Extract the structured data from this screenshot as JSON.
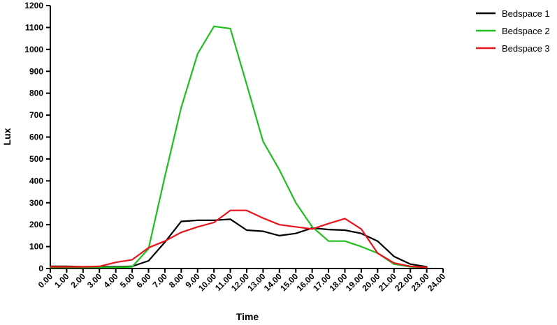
{
  "chart_data": {
    "type": "line",
    "xlabel": "Time",
    "ylabel": "Lux",
    "xlim": [
      0,
      24
    ],
    "ylim": [
      0,
      1200
    ],
    "x_ticks": [
      0,
      1,
      2,
      3,
      4,
      5,
      6,
      7,
      8,
      9,
      10,
      11,
      12,
      13,
      14,
      15,
      16,
      17,
      18,
      19,
      20,
      21,
      22,
      23,
      24
    ],
    "x_tick_labels": [
      "0.00",
      "1.00",
      "2.00",
      "3.00",
      "4.00",
      "5.00",
      "6.00",
      "7.00",
      "8.00",
      "9.00",
      "10.00",
      "11.00",
      "12.00",
      "13.00",
      "14.00",
      "15.00",
      "16.00",
      "17.00",
      "18.00",
      "19.00",
      "20.00",
      "21.00",
      "22.00",
      "23.00",
      "24.00"
    ],
    "y_ticks": [
      0,
      100,
      200,
      300,
      400,
      500,
      600,
      700,
      800,
      900,
      1000,
      1100,
      1200
    ],
    "y_tick_labels": [
      "0",
      "100",
      "200",
      "300",
      "400",
      "500",
      "600",
      "700",
      "800",
      "900",
      "1000",
      "1100",
      "1200"
    ],
    "grid": false,
    "legend_position": "top-right",
    "x": [
      0,
      1,
      2,
      3,
      4,
      5,
      6,
      7,
      8,
      9,
      10,
      11,
      12,
      13,
      14,
      15,
      16,
      17,
      18,
      19,
      20,
      21,
      22,
      23
    ],
    "series": [
      {
        "name": "Bedspace 1",
        "color": "#000000",
        "values": [
          10,
          10,
          8,
          8,
          8,
          10,
          35,
          120,
          215,
          220,
          220,
          225,
          175,
          170,
          150,
          160,
          185,
          178,
          175,
          160,
          125,
          55,
          20,
          8
        ]
      },
      {
        "name": "Bedspace 2",
        "color": "#1fbf1f",
        "values": [
          5,
          5,
          5,
          5,
          5,
          8,
          90,
          420,
          735,
          980,
          1105,
          1095,
          840,
          580,
          450,
          300,
          190,
          125,
          125,
          100,
          70,
          20,
          8,
          5
        ]
      },
      {
        "name": "Bedspace 3",
        "color": "#e8141c",
        "values": [
          8,
          8,
          8,
          10,
          28,
          40,
          95,
          125,
          165,
          190,
          210,
          265,
          265,
          230,
          200,
          190,
          180,
          205,
          228,
          180,
          70,
          25,
          10,
          5
        ]
      }
    ]
  }
}
